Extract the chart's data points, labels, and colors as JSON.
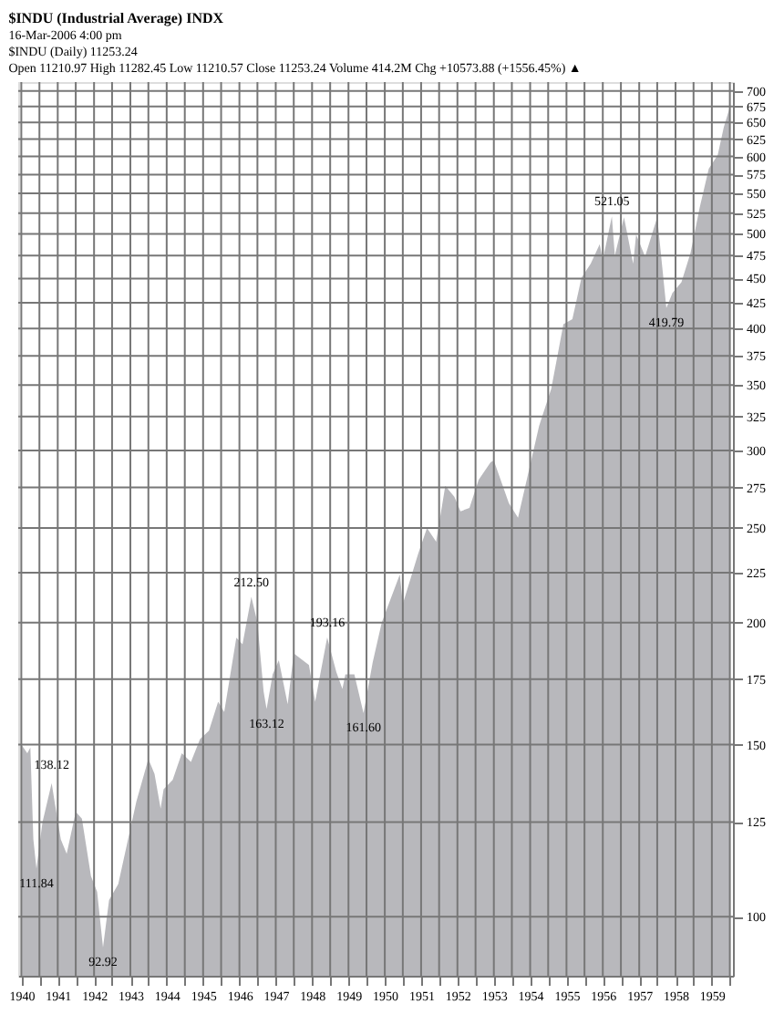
{
  "chart_data": {
    "type": "area",
    "title": "$INDU (Industrial Average) INDX",
    "subtitle": [
      "16-Mar-2006 4:00 pm",
      "$INDU (Daily) 11253.24",
      "Open 11210.97 High 11282.45 Low 11210.57 Close 11253.24 Volume 414.2M Chg +10573.88 (+1556.45%) ▲"
    ],
    "x": [
      "1940-01",
      "1940-03",
      "1940-04",
      "1940-05",
      "1940-06",
      "1940-08",
      "1940-11",
      "1940-12",
      "1941-02",
      "1941-04",
      "1941-07",
      "1941-09",
      "1941-12",
      "1942-02",
      "1942-04",
      "1942-06",
      "1942-09",
      "1942-12",
      "1943-03",
      "1943-07",
      "1943-09",
      "1943-11",
      "1943-12",
      "1944-03",
      "1944-06",
      "1944-09",
      "1944-12",
      "1945-03",
      "1945-06",
      "1945-08",
      "1945-12",
      "1946-02",
      "1946-05",
      "1946-07",
      "1946-09",
      "1946-10",
      "1946-12",
      "1947-02",
      "1947-05",
      "1947-07",
      "1947-12",
      "1948-02",
      "1948-06",
      "1948-09",
      "1948-11",
      "1948-12",
      "1949-03",
      "1949-06",
      "1949-09",
      "1949-12",
      "1950-06",
      "1950-07",
      "1950-12",
      "1951-03",
      "1951-06",
      "1951-09",
      "1951-12",
      "1952-02",
      "1952-05",
      "1952-08",
      "1952-12",
      "1953-01",
      "1953-06",
      "1953-09",
      "1953-12",
      "1954-04",
      "1954-08",
      "1954-12",
      "1955-03",
      "1955-06",
      "1955-09",
      "1955-12",
      "1956-01",
      "1956-04",
      "1956-05",
      "1956-08",
      "1956-11",
      "1956-12",
      "1957-03",
      "1957-07",
      "1957-10",
      "1957-12",
      "1958-03",
      "1958-06",
      "1958-09",
      "1958-12",
      "1959-03",
      "1959-05",
      "1959-07"
    ],
    "series": [
      {
        "color": "#b8b8bc",
        "values": [
          150,
          147,
          149,
          120,
          112,
          125,
          137,
          131,
          120,
          116,
          128,
          126,
          110,
          106,
          93,
          104,
          108,
          119,
          131,
          145,
          140,
          129,
          135,
          138,
          147,
          144,
          152,
          155,
          166,
          162,
          193,
          190,
          212.5,
          200,
          170,
          163.12,
          177,
          183,
          165,
          186,
          181,
          166,
          193.16,
          178,
          171,
          177,
          177,
          161.6,
          182,
          200,
          224,
          209,
          235,
          250,
          242,
          276,
          269,
          260,
          262,
          280,
          292,
          293,
          265,
          256,
          281,
          318,
          347,
          404,
          409,
          451,
          466,
          488,
          470,
          521.05,
          475,
          520,
          466,
          499,
          474,
          520,
          419.79,
          435,
          446,
          478,
          532,
          583,
          602,
          643,
          674
        ]
      }
    ],
    "annotations": [
      {
        "text": "111.84",
        "x": "1940-06",
        "y": 111.84
      },
      {
        "text": "138.12",
        "x": "1940-11",
        "y": 138.12
      },
      {
        "text": "92.92",
        "x": "1942-04",
        "y": 92.92
      },
      {
        "text": "212.50",
        "x": "1946-05",
        "y": 212.5
      },
      {
        "text": "163.12",
        "x": "1946-10",
        "y": 163.12
      },
      {
        "text": "193.16",
        "x": "1948-06",
        "y": 193.16
      },
      {
        "text": "161.60",
        "x": "1949-06",
        "y": 161.6
      },
      {
        "text": "521.05",
        "x": "1956-04",
        "y": 521.05
      },
      {
        "text": "419.79",
        "x": "1957-10",
        "y": 419.79
      }
    ],
    "log": true,
    "ylim": [
      87,
      715
    ],
    "yticks": [
      100,
      125,
      150,
      175,
      200,
      225,
      250,
      275,
      300,
      325,
      350,
      375,
      400,
      425,
      450,
      475,
      500,
      525,
      550,
      575,
      600,
      625,
      650,
      675,
      700
    ],
    "xlim": [
      "1939-12",
      "1959-08"
    ],
    "xticks": [
      "1940",
      {
        "value": "1940-07",
        "label": null
      },
      "1941",
      {
        "value": "1941-07",
        "label": null
      },
      "1942",
      {
        "value": "1942-07",
        "label": null
      },
      "1943",
      {
        "value": "1943-07",
        "label": null
      },
      "1944",
      {
        "value": "1944-07",
        "label": null
      },
      "1945",
      {
        "value": "1945-07",
        "label": null
      },
      "1946",
      {
        "value": "1946-07",
        "label": null
      },
      "1947",
      {
        "value": "1947-07",
        "label": null
      },
      "1948",
      {
        "value": "1948-07",
        "label": null
      },
      "1949",
      {
        "value": "1949-07",
        "label": null
      },
      "1950",
      {
        "value": "1950-07",
        "label": null
      },
      "1951",
      {
        "value": "1951-07",
        "label": null
      },
      "1952",
      {
        "value": "1952-07",
        "label": null
      },
      "1953",
      {
        "value": "1953-07",
        "label": null
      },
      "1954",
      {
        "value": "1954-07",
        "label": null
      },
      "1955",
      {
        "value": "1955-07",
        "label": null
      },
      "1956",
      {
        "value": "1956-07",
        "label": null
      },
      "1957",
      {
        "value": "1957-07",
        "label": null
      },
      "1958",
      {
        "value": "1958-07",
        "label": null
      },
      "1959",
      {
        "value": "1959-07",
        "label": null
      }
    ],
    "grid": true,
    "legend": false
  }
}
